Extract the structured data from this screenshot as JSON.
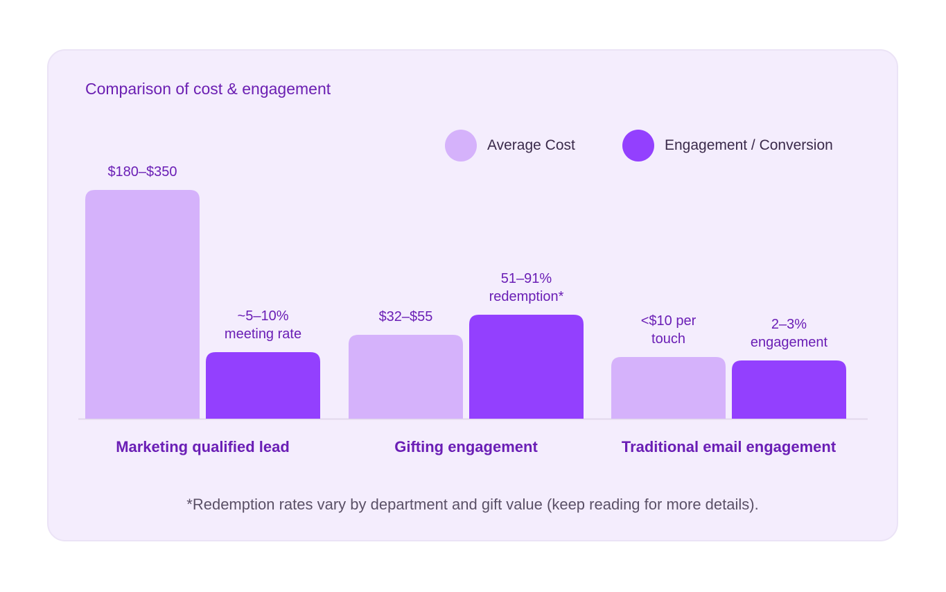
{
  "colors": {
    "card_bg": "#f4edfd",
    "title": "#6b1fb2",
    "average_cost": "#d5b2fb",
    "engagement": "#9340fe",
    "category_label": "#6a1eb5",
    "data_label": "#6a1eb5",
    "baseline": "#e2d8ec"
  },
  "chart_data": {
    "type": "bar",
    "title": "Comparison of cost & engagement",
    "categories": [
      "Marketing qualified lead",
      "Gifting engagement",
      "Traditional email engagement"
    ],
    "series": [
      {
        "name": "Average Cost",
        "color_key": "average_cost",
        "values": [
          330,
          121,
          89
        ],
        "labels": [
          [
            "$180–$350"
          ],
          [
            "$32–$55"
          ],
          [
            "<$10 per",
            "touch"
          ]
        ]
      },
      {
        "name": "Engagement / Conversion",
        "color_key": "engagement",
        "values": [
          96,
          150,
          84
        ],
        "labels": [
          [
            "~5–10%",
            "meeting rate"
          ],
          [
            "51–91%",
            "redemption*"
          ],
          [
            "2–3%",
            "engagement"
          ]
        ]
      }
    ],
    "ylim": [
      0,
      330
    ],
    "xlabel": "",
    "ylabel": "",
    "grid": false,
    "legend": "top-right"
  },
  "footnote": "*Redemption rates vary by department and gift value (keep reading for more details)."
}
